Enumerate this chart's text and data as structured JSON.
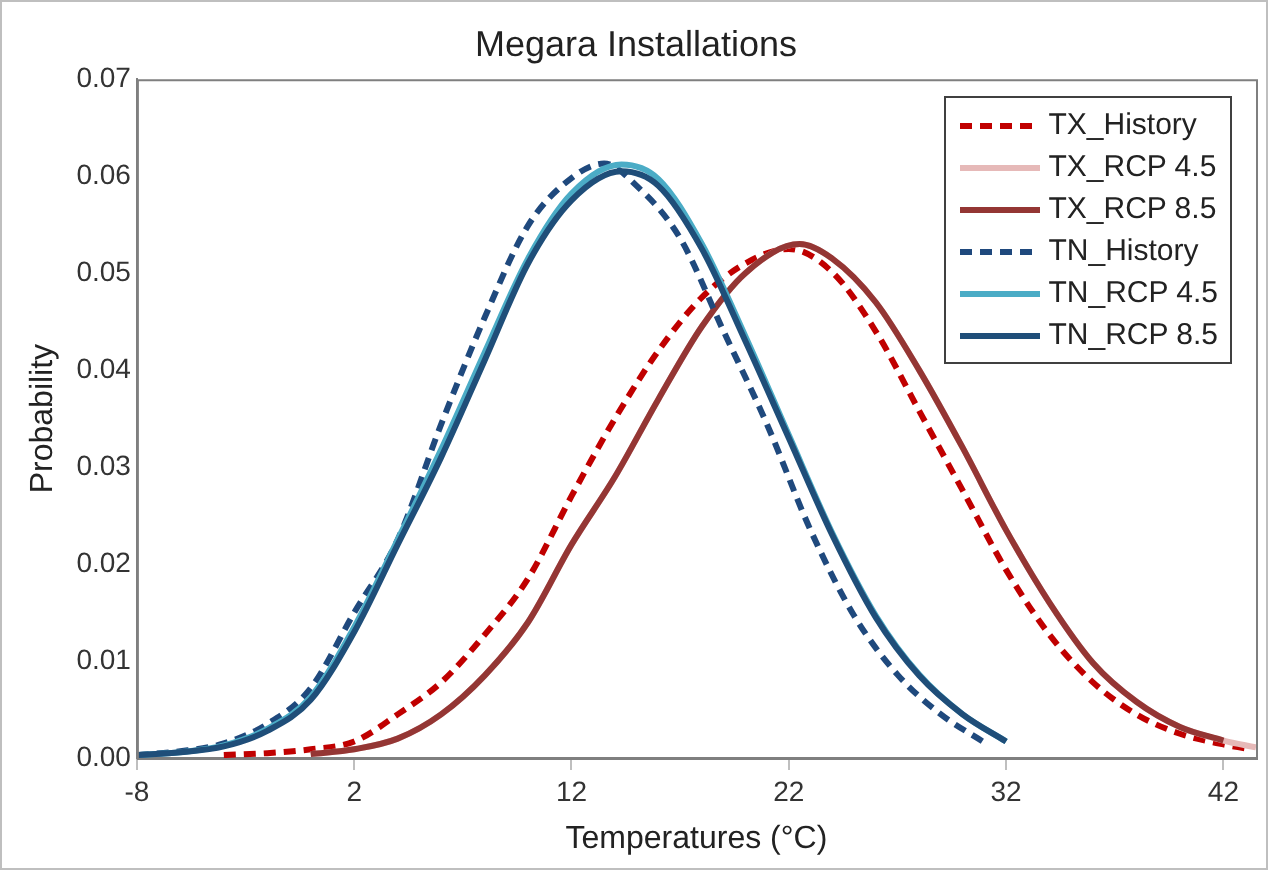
{
  "chart_data": {
    "type": "line",
    "title": "Megara Installations",
    "xlabel": "Temperatures (°C)",
    "ylabel": "Probability",
    "xlim": [
      -8,
      43.5
    ],
    "xticks": [
      -8,
      2,
      12,
      22,
      32,
      42
    ],
    "ylim": [
      0,
      0.07
    ],
    "yticks": [
      {
        "value": 0,
        "label": "0.00"
      },
      0.01,
      0.02,
      0.03,
      0.04,
      0.05,
      0.06,
      0.07
    ],
    "grid": false,
    "legend": "top right",
    "marker": "none",
    "series": [
      {
        "name": "TX_History",
        "color": "#c00000",
        "line_style": "dashed",
        "x": [
          -4,
          -2,
          0,
          2,
          4,
          6,
          8,
          10,
          12,
          14,
          16,
          18,
          20,
          22,
          24,
          26,
          28,
          30,
          32,
          34,
          36,
          38,
          40,
          42,
          43
        ],
        "values": [
          0.0003,
          0.0005,
          0.0009,
          0.0017,
          0.0045,
          0.0078,
          0.0127,
          0.0185,
          0.027,
          0.035,
          0.042,
          0.0475,
          0.051,
          0.0525,
          0.0501,
          0.044,
          0.0358,
          0.0276,
          0.0194,
          0.0127,
          0.0078,
          0.0045,
          0.0025,
          0.0014,
          0.001
        ]
      },
      {
        "name": "TX_RCP 4.5",
        "color": "#e6b9b8",
        "line_style": "solid",
        "x": [
          0,
          2,
          4,
          6,
          8,
          10,
          12,
          14,
          16,
          18,
          20,
          22.5,
          24,
          26,
          28,
          30,
          32,
          34,
          36,
          38,
          40,
          42,
          43.5
        ],
        "values": [
          0.0004,
          0.0009,
          0.002,
          0.0045,
          0.0085,
          0.014,
          0.022,
          0.029,
          0.037,
          0.0445,
          0.05,
          0.053,
          0.0515,
          0.047,
          0.04,
          0.032,
          0.0235,
          0.016,
          0.0098,
          0.0058,
          0.0032,
          0.0018,
          0.0011
        ]
      },
      {
        "name": "TX_RCP 8.5",
        "color": "#943634",
        "line_style": "solid",
        "x": [
          0,
          2,
          4,
          6,
          8,
          10,
          12,
          14,
          16,
          18,
          20,
          22.5,
          24,
          26,
          28,
          30,
          32,
          34,
          36,
          38,
          40,
          42
        ],
        "values": [
          0.0004,
          0.0009,
          0.002,
          0.0045,
          0.0085,
          0.014,
          0.022,
          0.029,
          0.037,
          0.0445,
          0.05,
          0.053,
          0.0515,
          0.047,
          0.04,
          0.032,
          0.0235,
          0.016,
          0.0098,
          0.0058,
          0.0032,
          0.0018
        ]
      },
      {
        "name": "TN_History",
        "color": "#1f497d",
        "line_style": "dashed",
        "x": [
          -8,
          -6,
          -4,
          -2,
          0,
          2,
          4,
          6,
          8,
          10,
          12,
          13.5,
          15,
          17,
          19,
          21,
          23,
          25,
          27,
          29,
          31
        ],
        "values": [
          0.0003,
          0.0007,
          0.0015,
          0.0035,
          0.0072,
          0.015,
          0.0225,
          0.0344,
          0.0454,
          0.0549,
          0.0598,
          0.0613,
          0.059,
          0.0536,
          0.044,
          0.0344,
          0.0235,
          0.0147,
          0.0086,
          0.0045,
          0.0016
        ]
      },
      {
        "name": "TN_RCP 4.5",
        "color": "#4bacc6",
        "line_style": "solid",
        "x": [
          -8,
          -6,
          -4,
          -2,
          0,
          2,
          4,
          6,
          8,
          10,
          12,
          14.3,
          16,
          18,
          20,
          22,
          24,
          26,
          28,
          30,
          32
        ],
        "values": [
          0.0003,
          0.0006,
          0.0013,
          0.003,
          0.0063,
          0.0135,
          0.0225,
          0.0318,
          0.0418,
          0.0515,
          0.0582,
          0.0612,
          0.0597,
          0.053,
          0.0435,
          0.0333,
          0.0232,
          0.0147,
          0.0086,
          0.0045,
          0.0017
        ]
      },
      {
        "name": "TN_RCP 8.5",
        "color": "#1f4e79",
        "line_style": "solid",
        "x": [
          -8,
          -6,
          -4,
          -2,
          0,
          2,
          4,
          6,
          8,
          10,
          12,
          14.3,
          16,
          18,
          20,
          22,
          24,
          26,
          28,
          30,
          32
        ],
        "values": [
          0.0003,
          0.0006,
          0.0012,
          0.0028,
          0.006,
          0.013,
          0.022,
          0.031,
          0.041,
          0.051,
          0.0575,
          0.0605,
          0.059,
          0.0525,
          0.043,
          0.033,
          0.023,
          0.0145,
          0.0085,
          0.0045,
          0.0017
        ]
      }
    ]
  }
}
